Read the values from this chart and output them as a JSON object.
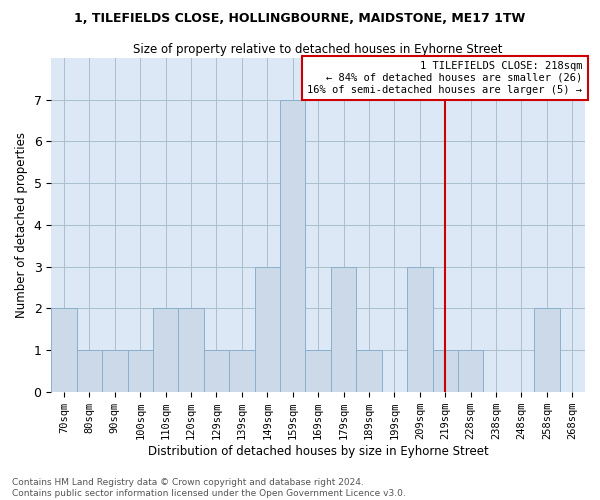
{
  "title": "1, TILEFIELDS CLOSE, HOLLINGBOURNE, MAIDSTONE, ME17 1TW",
  "subtitle": "Size of property relative to detached houses in Eyhorne Street",
  "xlabel": "Distribution of detached houses by size in Eyhorne Street",
  "ylabel": "Number of detached properties",
  "footer_line1": "Contains HM Land Registry data © Crown copyright and database right 2024.",
  "footer_line2": "Contains public sector information licensed under the Open Government Licence v3.0.",
  "categories": [
    "70sqm",
    "80sqm",
    "90sqm",
    "100sqm",
    "110sqm",
    "120sqm",
    "129sqm",
    "139sqm",
    "149sqm",
    "159sqm",
    "169sqm",
    "179sqm",
    "189sqm",
    "199sqm",
    "209sqm",
    "219sqm",
    "228sqm",
    "238sqm",
    "248sqm",
    "258sqm",
    "268sqm"
  ],
  "values": [
    2,
    1,
    1,
    1,
    2,
    2,
    1,
    1,
    3,
    7,
    1,
    3,
    1,
    0,
    3,
    1,
    1,
    0,
    0,
    2,
    0
  ],
  "bar_color": "#ccd9e8",
  "bar_edge_color": "#8ab0cc",
  "vline_index": 15,
  "vline_label": "1 TILEFIELDS CLOSE: 218sqm",
  "pct_smaller": "84% of detached houses are smaller (26)",
  "pct_larger": "16% of semi-detached houses are larger (5)",
  "annotation_box_color": "#cc0000",
  "ylim": [
    0,
    8
  ],
  "yticks": [
    0,
    1,
    2,
    3,
    4,
    5,
    6,
    7
  ],
  "background_color": "#ffffff",
  "plot_bg_color": "#dce8f5",
  "grid_color": "#aabfcc"
}
